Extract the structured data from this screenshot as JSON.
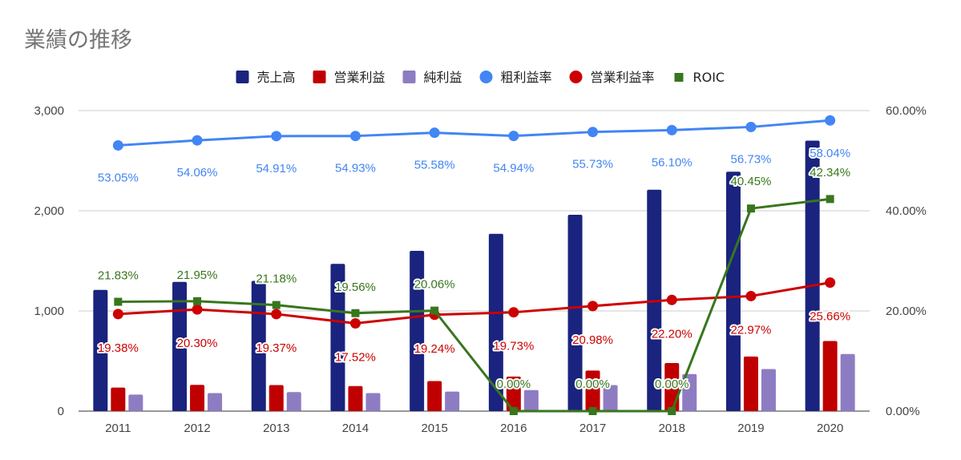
{
  "chart_data": {
    "type": "bar",
    "title": "業績の推移",
    "categories": [
      "2011",
      "2012",
      "2013",
      "2014",
      "2015",
      "2016",
      "2017",
      "2018",
      "2019",
      "2020"
    ],
    "y_left": {
      "ylim": [
        0,
        3000
      ],
      "ticks": [
        "0",
        "1,000",
        "2,000",
        "3,000"
      ],
      "tick_values": [
        0,
        1000,
        2000,
        3000
      ]
    },
    "y_right": {
      "ylim": [
        0,
        60
      ],
      "ticks": [
        "0.00%",
        "20.00%",
        "40.00%",
        "60.00%"
      ],
      "tick_values": [
        0,
        20,
        40,
        60
      ]
    },
    "bar_series": [
      {
        "name": "売上高",
        "color": "#1a237e",
        "values": [
          1210,
          1290,
          1300,
          1470,
          1600,
          1770,
          1960,
          2210,
          2390,
          2700
        ]
      },
      {
        "name": "営業利益",
        "color": "#c00000",
        "values": [
          235,
          262,
          260,
          250,
          300,
          345,
          405,
          480,
          545,
          700
        ]
      },
      {
        "name": "純利益",
        "color": "#8e7cc3",
        "values": [
          165,
          180,
          190,
          180,
          195,
          210,
          260,
          370,
          420,
          570
        ]
      }
    ],
    "line_series": [
      {
        "name": "粗利益率",
        "color": "#4285f4",
        "marker": "circle",
        "values": [
          53.05,
          54.06,
          54.91,
          54.93,
          55.58,
          54.94,
          55.73,
          56.1,
          56.73,
          58.04
        ],
        "labels": [
          "53.05%",
          "54.06%",
          "54.91%",
          "54.93%",
          "55.58%",
          "54.94%",
          "55.73%",
          "56.10%",
          "56.73%",
          "58.04%"
        ]
      },
      {
        "name": "営業利益率",
        "color": "#cc0000",
        "marker": "circle",
        "values": [
          19.38,
          20.3,
          19.37,
          17.52,
          19.24,
          19.73,
          20.98,
          22.2,
          22.97,
          25.66
        ],
        "labels": [
          "19.38%",
          "20.30%",
          "19.37%",
          "17.52%",
          "19.24%",
          "19.73%",
          "20.98%",
          "22.20%",
          "22.97%",
          "25.66%"
        ]
      },
      {
        "name": "ROIC",
        "color": "#38761d",
        "marker": "square",
        "values": [
          21.83,
          21.95,
          21.18,
          19.56,
          20.06,
          0.0,
          0.0,
          0.0,
          40.45,
          42.34
        ],
        "labels": [
          "21.83%",
          "21.95%",
          "21.18%",
          "19.56%",
          "20.06%",
          "0.00%",
          "0.00%",
          "0.00%",
          "40.45%",
          "42.34%"
        ]
      }
    ],
    "legend": "top",
    "grid": true
  }
}
